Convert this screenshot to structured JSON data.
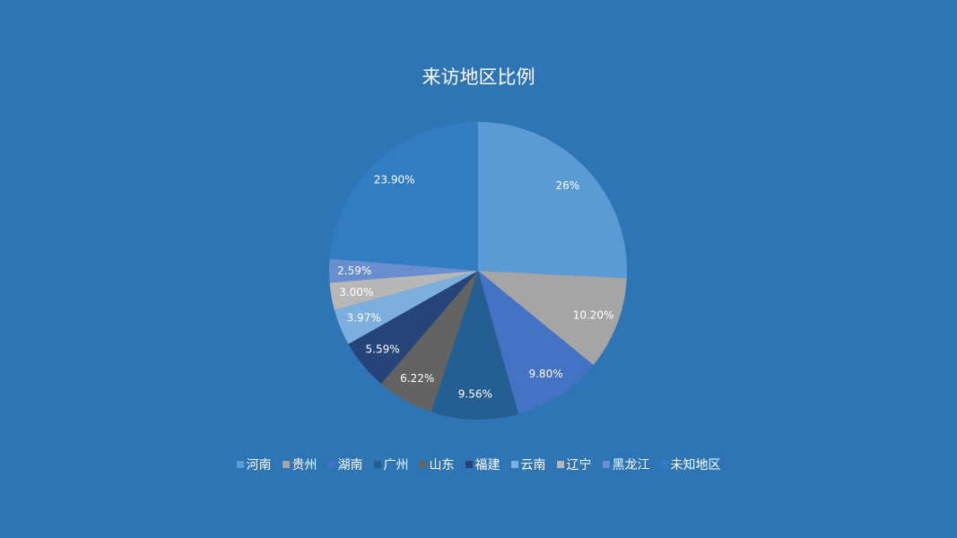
{
  "chart_data": {
    "type": "pie",
    "title": "来访地区比例",
    "categories": [
      "河南",
      "贵州",
      "湖南",
      "广州",
      "山东",
      "福建",
      "云南",
      "辽宁",
      "黑龙江",
      "未知地区"
    ],
    "values": [
      26,
      10.2,
      9.8,
      9.56,
      6.22,
      5.59,
      3.97,
      3.0,
      2.59,
      23.9
    ],
    "labels": [
      "26%",
      "10.20%",
      "9.80%",
      "9.56%",
      "6.22%",
      "5.59%",
      "3.97%",
      "3.00%",
      "2.59%",
      "23.90%"
    ],
    "colors": [
      "#5b9bd5",
      "#a5a5a5",
      "#4472c4",
      "#255e91",
      "#636363",
      "#264478",
      "#7cafdd",
      "#b7b7b7",
      "#698ed0",
      "#327dc2"
    ],
    "start": "top",
    "direction": "clockwise",
    "legend": "bottom"
  },
  "background": "#2e75b6"
}
